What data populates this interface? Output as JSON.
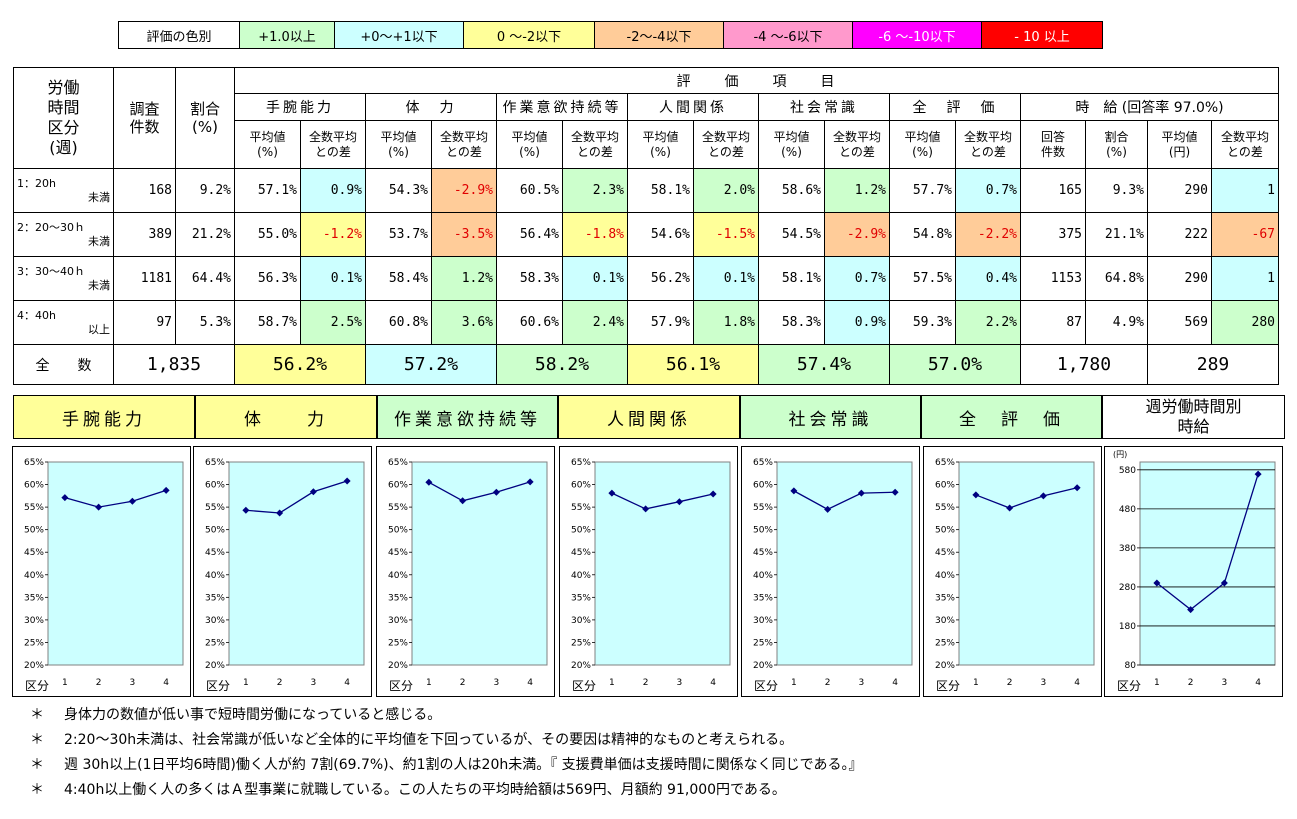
{
  "legend": {
    "title": "評価の色別",
    "items": [
      {
        "label": "+1.0以上",
        "color": "#ccffcc"
      },
      {
        "label": "+0～+1以下",
        "color": "#ccffff"
      },
      {
        "label": "0 ～-2以下",
        "color": "#ffff99"
      },
      {
        "label": "-2～-4以下",
        "color": "#ffcc99"
      },
      {
        "label": "-4 ～-6以下",
        "color": "#ff99cc"
      },
      {
        "label": "-6 ～-10以下",
        "color": "#ff00ff"
      },
      {
        "label": "- 10 以上",
        "color": "#ff0000"
      }
    ]
  },
  "table": {
    "h_worktime": "労働\n時間\n区分\n(週)",
    "h_count": "調査\n件数",
    "h_ratio": "割合\n(%)",
    "h_eval": "評　　価　　項　　目",
    "categories": [
      "手腕能力",
      "体　力",
      "作業意欲持続等",
      "人間関係",
      "社会常識",
      "全　評　価"
    ],
    "h_wage": "時　給 (回答率 97.0%)",
    "sub_avg": "平均値\n(%)",
    "sub_diff": "全数平均\nとの差",
    "sub_resp": "回答\n件数",
    "sub_ratio": "割合\n(%)",
    "sub_wage_avg": "平均値\n(円)",
    "rows": [
      {
        "label1": "1：20h",
        "label2": "未満",
        "count": "168",
        "ratio": "9.2%",
        "evals": [
          [
            "57.1%",
            "0.9%"
          ],
          [
            "54.3%",
            "-2.9%"
          ],
          [
            "60.5%",
            "2.3%"
          ],
          [
            "58.1%",
            "2.0%"
          ],
          [
            "58.6%",
            "1.2%"
          ],
          [
            "57.7%",
            "0.7%"
          ]
        ],
        "resp": "165",
        "resp_ratio": "9.3%",
        "wage": "290",
        "wage_diff": "1"
      },
      {
        "label1": "2：20～30ｈ",
        "label2": "未満",
        "count": "389",
        "ratio": "21.2%",
        "evals": [
          [
            "55.0%",
            "-1.2%"
          ],
          [
            "53.7%",
            "-3.5%"
          ],
          [
            "56.4%",
            "-1.8%"
          ],
          [
            "54.6%",
            "-1.5%"
          ],
          [
            "54.5%",
            "-2.9%"
          ],
          [
            "54.8%",
            "-2.2%"
          ]
        ],
        "resp": "375",
        "resp_ratio": "21.1%",
        "wage": "222",
        "wage_diff": "-67"
      },
      {
        "label1": "3：30～40ｈ",
        "label2": "未満",
        "count": "1181",
        "ratio": "64.4%",
        "evals": [
          [
            "56.3%",
            "0.1%"
          ],
          [
            "58.4%",
            "1.2%"
          ],
          [
            "58.3%",
            "0.1%"
          ],
          [
            "56.2%",
            "0.1%"
          ],
          [
            "58.1%",
            "0.7%"
          ],
          [
            "57.5%",
            "0.4%"
          ]
        ],
        "resp": "1153",
        "resp_ratio": "64.8%",
        "wage": "290",
        "wage_diff": "1"
      },
      {
        "label1": "4：40h",
        "label2": "以上",
        "count": "97",
        "ratio": "5.3%",
        "evals": [
          [
            "58.7%",
            "2.5%"
          ],
          [
            "60.8%",
            "3.6%"
          ],
          [
            "60.6%",
            "2.4%"
          ],
          [
            "57.9%",
            "1.8%"
          ],
          [
            "58.3%",
            "0.9%"
          ],
          [
            "59.3%",
            "2.2%"
          ]
        ],
        "resp": "87",
        "resp_ratio": "4.9%",
        "wage": "569",
        "wage_diff": "280"
      }
    ],
    "total": {
      "label": "全　　数",
      "count": "1,835",
      "evals": [
        "56.2%",
        "57.2%",
        "58.2%",
        "56.1%",
        "57.4%",
        "57.0%"
      ],
      "resp": "1,780",
      "wage": "289"
    }
  },
  "charts": {
    "headers": [
      "手腕能力",
      "体　　力",
      "作業意欲持続等",
      "人間関係",
      "社会常識",
      "全　評　価",
      "週労働時間別\n時給"
    ],
    "header_colors": [
      "#ffff99",
      "#ffff99",
      "#ccffcc",
      "#ffff99",
      "#ccffcc",
      "#ccffcc",
      "#ffffff"
    ],
    "x_prefix": "区分",
    "wage_unit": "(円)"
  },
  "chart_data": [
    {
      "type": "line",
      "categories": [
        "1",
        "2",
        "3",
        "4"
      ],
      "values": [
        57.1,
        55.0,
        56.3,
        58.7
      ],
      "ylim": [
        20,
        65
      ],
      "yticks": [
        "20%",
        "25%",
        "30%",
        "35%",
        "40%",
        "45%",
        "50%",
        "55%",
        "60%",
        "65%"
      ]
    },
    {
      "type": "line",
      "categories": [
        "1",
        "2",
        "3",
        "4"
      ],
      "values": [
        54.3,
        53.7,
        58.4,
        60.8
      ],
      "ylim": [
        20,
        65
      ],
      "yticks": [
        "20%",
        "25%",
        "30%",
        "35%",
        "40%",
        "45%",
        "50%",
        "55%",
        "60%",
        "65%"
      ]
    },
    {
      "type": "line",
      "categories": [
        "1",
        "2",
        "3",
        "4"
      ],
      "values": [
        60.5,
        56.4,
        58.3,
        60.6
      ],
      "ylim": [
        20,
        65
      ],
      "yticks": [
        "20%",
        "25%",
        "30%",
        "35%",
        "40%",
        "45%",
        "50%",
        "55%",
        "60%",
        "65%"
      ]
    },
    {
      "type": "line",
      "categories": [
        "1",
        "2",
        "3",
        "4"
      ],
      "values": [
        58.1,
        54.6,
        56.2,
        57.9
      ],
      "ylim": [
        20,
        65
      ],
      "yticks": [
        "20%",
        "25%",
        "30%",
        "35%",
        "40%",
        "45%",
        "50%",
        "55%",
        "60%",
        "65%"
      ]
    },
    {
      "type": "line",
      "categories": [
        "1",
        "2",
        "3",
        "4"
      ],
      "values": [
        58.6,
        54.5,
        58.1,
        58.3
      ],
      "ylim": [
        20,
        65
      ],
      "yticks": [
        "20%",
        "25%",
        "30%",
        "35%",
        "40%",
        "45%",
        "50%",
        "55%",
        "60%",
        "65%"
      ]
    },
    {
      "type": "line",
      "categories": [
        "1",
        "2",
        "3",
        "4"
      ],
      "values": [
        57.7,
        54.8,
        57.5,
        59.3
      ],
      "ylim": [
        20,
        65
      ],
      "yticks": [
        "20%",
        "25%",
        "30%",
        "35%",
        "40%",
        "45%",
        "50%",
        "55%",
        "60%",
        "65%"
      ]
    },
    {
      "type": "line",
      "categories": [
        "1",
        "2",
        "3",
        "4"
      ],
      "values": [
        290,
        222,
        290,
        569
      ],
      "ylim": [
        80,
        600
      ],
      "yticks": [
        "80",
        "180",
        "280",
        "380",
        "480",
        "580"
      ]
    }
  ],
  "notes": [
    "身体力の数値が低い事で短時間労働になっていると感じる。",
    "2:20～30h未満は、社会常識が低いなど全体的に平均値を下回っているが、その要因は精神的なものと考えられる。",
    "週 30h以上(1日平均6時間)働く人が約 7割(69.7%)、約1割の人は20h未満。『 支援費単価は支援時間に関係なく同じである。』",
    "4:40h以上働く人の多くはＡ型事業に就職している。この人たちの平均時給額は569円、月額約 91,000円である。"
  ],
  "note_marker": "＊"
}
